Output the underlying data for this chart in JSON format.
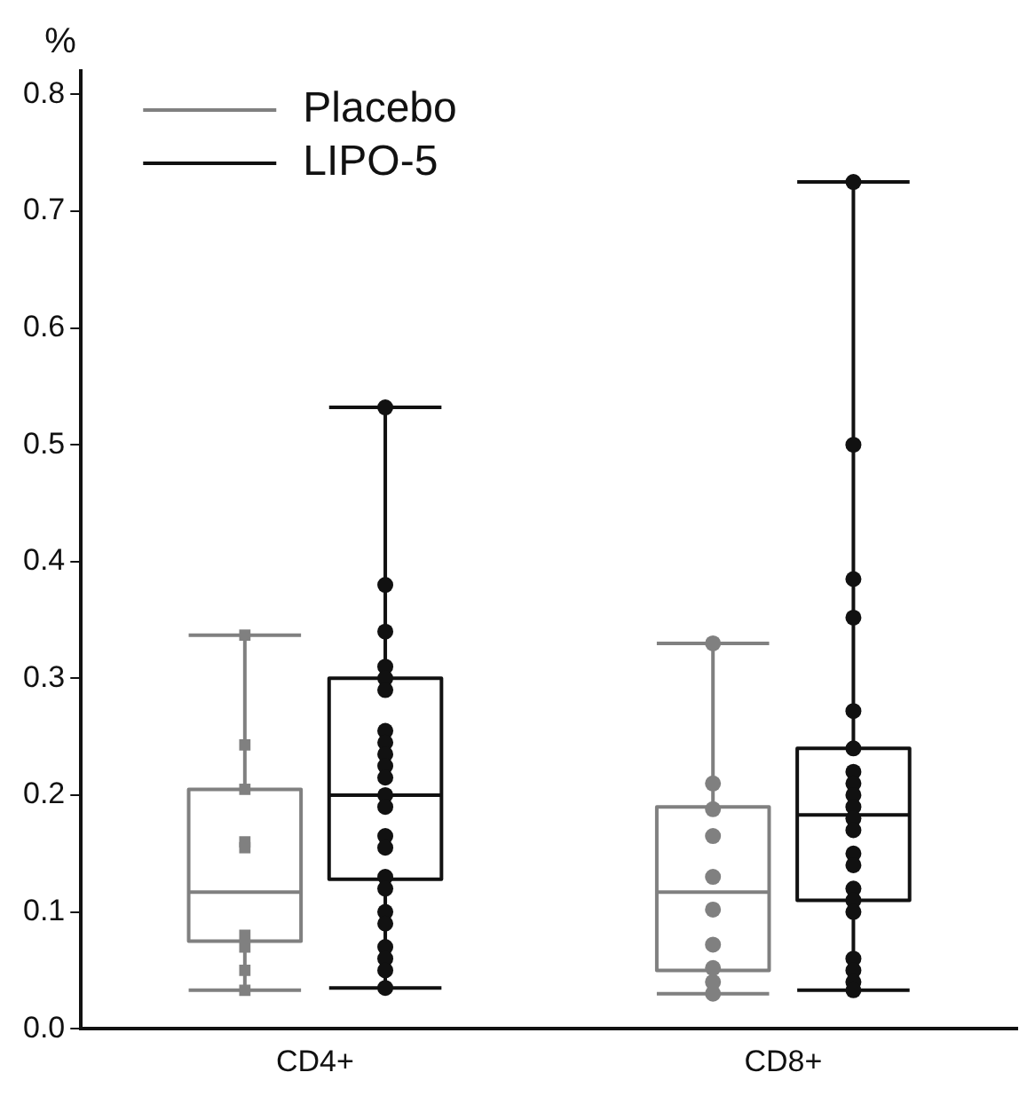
{
  "chart_data": {
    "type": "box",
    "ylabel": "%",
    "categories": [
      "CD4+",
      "CD8+"
    ],
    "ylim": [
      0,
      0.82
    ],
    "yticks": [
      {
        "value": 0,
        "label": "0.0"
      },
      {
        "value": 0.1,
        "label": "0.1"
      },
      {
        "value": 0.2,
        "label": "0.2"
      },
      {
        "value": 0.3,
        "label": "0.3"
      },
      {
        "value": 0.4,
        "label": "0.4"
      },
      {
        "value": 0.5,
        "label": "0.5"
      },
      {
        "value": 0.6,
        "label": "0.6"
      },
      {
        "value": 0.7,
        "label": "0.7"
      },
      {
        "value": 0.8,
        "label": "0.8"
      }
    ],
    "grid": false,
    "legend": "top left",
    "series": [
      {
        "name": "Placebo",
        "color": "#808080",
        "boxes": [
          {
            "low": 0.033,
            "q1": 0.075,
            "median": 0.117,
            "q3": 0.205,
            "high": 0.337
          },
          {
            "low": 0.03,
            "q1": 0.05,
            "median": 0.117,
            "q3": 0.19,
            "high": 0.33
          }
        ]
      },
      {
        "name": "LIPO-5",
        "color": "#111111",
        "boxes": [
          {
            "low": 0.035,
            "q1": 0.128,
            "median": 0.2,
            "q3": 0.3,
            "high": 0.532
          },
          {
            "low": 0.033,
            "q1": 0.11,
            "median": 0.183,
            "q3": 0.24,
            "high": 0.725
          }
        ]
      },
      {
        "type": "scatter",
        "color": "#808080",
        "marker": "square",
        "x": [
          "CD4+",
          "CD4+",
          "CD4+",
          "CD4+",
          "CD4+",
          "CD4+",
          "CD4+",
          "CD4+",
          "CD4+"
        ],
        "values": [
          0.337,
          0.243,
          0.205,
          0.16,
          0.155,
          0.08,
          0.07,
          0.05,
          0.033
        ]
      },
      {
        "type": "scatter",
        "color": "#111111",
        "marker": "circle",
        "x": [
          "CD4+",
          "CD4+",
          "CD4+",
          "CD4+",
          "CD4+",
          "CD4+",
          "CD4+",
          "CD4+",
          "CD4+",
          "CD4+",
          "CD4+",
          "CD4+",
          "CD4+",
          "CD4+",
          "CD4+",
          "CD4+",
          "CD4+",
          "CD4+",
          "CD4+",
          "CD4+",
          "CD4+",
          "CD4+",
          "CD4+"
        ],
        "values": [
          0.532,
          0.38,
          0.34,
          0.31,
          0.3,
          0.29,
          0.255,
          0.245,
          0.235,
          0.225,
          0.215,
          0.2,
          0.19,
          0.165,
          0.155,
          0.13,
          0.12,
          0.1,
          0.09,
          0.07,
          0.06,
          0.05,
          0.035
        ]
      },
      {
        "type": "scatter",
        "color": "#808080",
        "marker": "circle",
        "x": [
          "CD8+",
          "CD8+",
          "CD8+",
          "CD8+",
          "CD8+",
          "CD8+",
          "CD8+",
          "CD8+",
          "CD8+",
          "CD8+"
        ],
        "values": [
          0.33,
          0.21,
          0.188,
          0.165,
          0.13,
          0.102,
          0.072,
          0.052,
          0.04,
          0.03
        ]
      },
      {
        "type": "scatter",
        "color": "#111111",
        "marker": "circle",
        "x": [
          "CD8+",
          "CD8+",
          "CD8+",
          "CD8+",
          "CD8+",
          "CD8+",
          "CD8+",
          "CD8+",
          "CD8+",
          "CD8+",
          "CD8+",
          "CD8+",
          "CD8+",
          "CD8+",
          "CD8+",
          "CD8+",
          "CD8+",
          "CD8+",
          "CD8+",
          "CD8+",
          "CD8+"
        ],
        "values": [
          0.725,
          0.5,
          0.385,
          0.352,
          0.272,
          0.24,
          0.22,
          0.21,
          0.2,
          0.19,
          0.18,
          0.17,
          0.15,
          0.14,
          0.12,
          0.11,
          0.1,
          0.06,
          0.05,
          0.04,
          0.033
        ]
      }
    ]
  }
}
